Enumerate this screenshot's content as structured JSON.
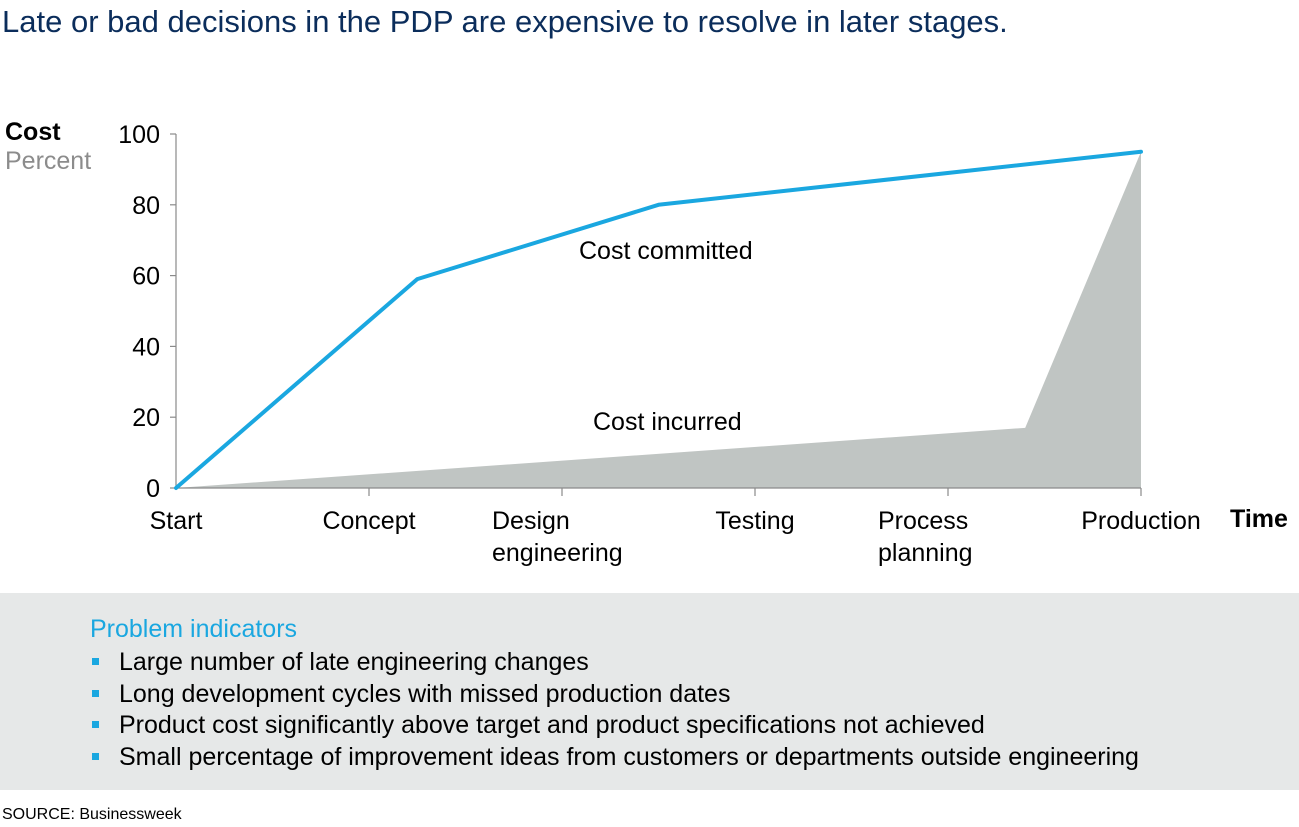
{
  "title": "Late or bad decisions in the PDP are expensive to resolve in later stages.",
  "y_axis": {
    "label": "Cost",
    "unit": "Percent"
  },
  "x_axis": {
    "label": "Time"
  },
  "chart_data": {
    "type": "line",
    "categories": [
      "Start",
      "Concept",
      "Design engineering",
      "Testing",
      "Process planning",
      "Production"
    ],
    "category_lines": [
      [
        "Start"
      ],
      [
        "Concept"
      ],
      [
        "Design",
        "engineering"
      ],
      [
        "Testing"
      ],
      [
        "Process",
        "planning"
      ],
      [
        "Production"
      ]
    ],
    "x_range": [
      0,
      5
    ],
    "ylim": [
      0,
      100
    ],
    "yticks": [
      0,
      20,
      40,
      60,
      80,
      100
    ],
    "series": [
      {
        "name": "Cost committed",
        "style": "line",
        "color": "#1aa7e0",
        "points": [
          [
            0,
            0
          ],
          [
            1.25,
            59
          ],
          [
            2.5,
            80
          ],
          [
            5,
            95
          ]
        ]
      },
      {
        "name": "Cost incurred",
        "style": "area",
        "color": "#c0c5c3",
        "points": [
          [
            0,
            0
          ],
          [
            4.4,
            17
          ],
          [
            5,
            95
          ]
        ]
      }
    ],
    "grid": false,
    "legend": "inline labels"
  },
  "panel": {
    "title": "Problem indicators",
    "items": [
      "Large number of late engineering changes",
      "Long development cycles with missed production dates",
      "Product cost significantly above target and product specifications not achieved",
      "Small percentage of improvement ideas from customers or departments outside engineering"
    ]
  },
  "source": "SOURCE: Businessweek"
}
